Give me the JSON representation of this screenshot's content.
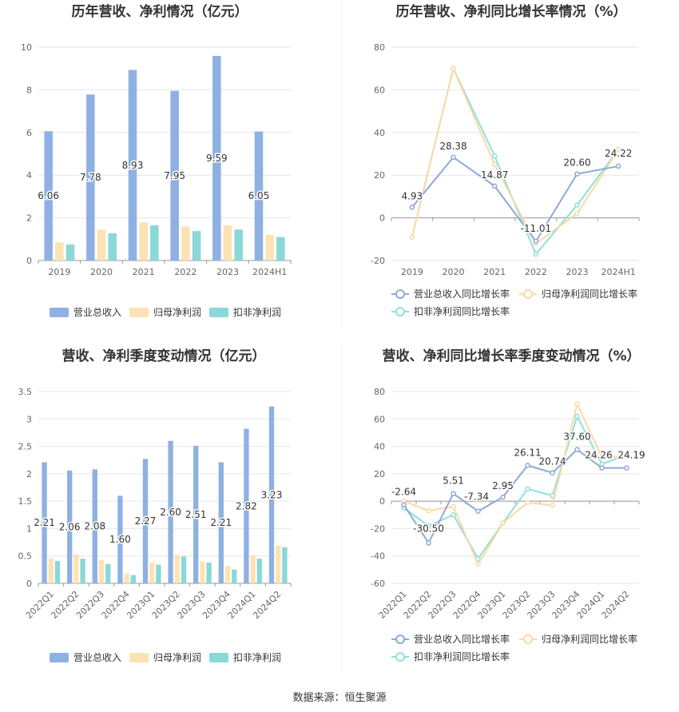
{
  "footer": "数据来源：恒生聚源",
  "legend_labels": {
    "revenue": "营业总收入",
    "net_profit": "归母净利润",
    "deducted_profit": "扣非净利润",
    "revenue_growth": "营业总收入同比增长率",
    "net_growth": "归母净利润同比增长率",
    "deducted_growth": "扣非净利润同比增长率"
  },
  "colors": {
    "revenue": "#8eb1e2",
    "net_profit": "#fde3b3",
    "deducted_profit": "#8ad8d8",
    "revenue_line": "#8ea9d9",
    "net_line": "#fcd8a2",
    "deducted_line": "#8fe0dc"
  },
  "chart_data": [
    {
      "type": "bar",
      "title": "历年营收、净利情况（亿元）",
      "categories": [
        "2019",
        "2020",
        "2021",
        "2022",
        "2023",
        "2024H1"
      ],
      "ylim": [
        0,
        10
      ],
      "yticks": [
        0,
        2,
        4,
        6,
        8,
        10
      ],
      "series": [
        {
          "name": "营业总收入",
          "values": [
            6.06,
            7.78,
            8.93,
            7.95,
            9.59,
            6.05
          ],
          "labeled": true
        },
        {
          "name": "归母净利润",
          "values": [
            0.85,
            1.45,
            1.8,
            1.6,
            1.65,
            1.2
          ]
        },
        {
          "name": "扣非净利润",
          "values": [
            0.75,
            1.28,
            1.65,
            1.38,
            1.45,
            1.1
          ]
        }
      ],
      "legend": "bottom",
      "grid": true
    },
    {
      "type": "line",
      "title": "历年营收、净利同比增长率情况（%）",
      "categories": [
        "2019",
        "2020",
        "2021",
        "2022",
        "2023",
        "2024H1"
      ],
      "ylim": [
        -20,
        80
      ],
      "yticks": [
        -20,
        0,
        20,
        40,
        60,
        80
      ],
      "series": [
        {
          "name": "营业总收入同比增长率",
          "values": [
            4.93,
            28.38,
            14.87,
            -11.01,
            20.6,
            24.22
          ],
          "labeled": true
        },
        {
          "name": "归母净利润同比增长率",
          "values": [
            -9,
            70,
            25,
            -12,
            2,
            32
          ]
        },
        {
          "name": "扣非净利润同比增长率",
          "values": [
            -9,
            70,
            29,
            -17,
            6,
            32
          ]
        }
      ],
      "legend": "bottom",
      "grid": true
    },
    {
      "type": "bar",
      "title": "营收、净利季度变动情况（亿元）",
      "categories": [
        "2022Q1",
        "2022Q2",
        "2022Q3",
        "2022Q4",
        "2023Q1",
        "2023Q2",
        "2023Q3",
        "2023Q4",
        "2024Q1",
        "2024Q2"
      ],
      "ylim": [
        0,
        3.5
      ],
      "yticks": [
        0,
        0.5,
        1,
        1.5,
        2,
        2.5,
        3,
        3.5
      ],
      "series": [
        {
          "name": "营业总收入",
          "values": [
            2.21,
            2.06,
            2.08,
            1.6,
            2.27,
            2.6,
            2.51,
            2.21,
            2.82,
            3.23
          ],
          "labeled": true
        },
        {
          "name": "归母净利润",
          "values": [
            0.46,
            0.53,
            0.42,
            0.18,
            0.38,
            0.52,
            0.4,
            0.32,
            0.51,
            0.69
          ]
        },
        {
          "name": "扣非净利润",
          "values": [
            0.41,
            0.45,
            0.35,
            0.15,
            0.34,
            0.49,
            0.38,
            0.25,
            0.45,
            0.66
          ]
        }
      ],
      "legend": "bottom",
      "grid": true
    },
    {
      "type": "line",
      "title": "营收、净利同比增长率季度变动情况（%）",
      "categories": [
        "2022Q1",
        "2022Q2",
        "2022Q3",
        "2022Q4",
        "2023Q1",
        "2023Q2",
        "2023Q3",
        "2023Q4",
        "2024Q1",
        "2024Q2"
      ],
      "ylim": [
        -60,
        80
      ],
      "yticks": [
        -60,
        -40,
        -20,
        0,
        20,
        40,
        60,
        80
      ],
      "series": [
        {
          "name": "营业总收入同比增长率",
          "values": [
            -2.64,
            -30.5,
            5.51,
            -7.34,
            2.95,
            26.11,
            20.74,
            37.6,
            24.26,
            24.19
          ],
          "labeled": true
        },
        {
          "name": "归母净利润同比增长率",
          "values": [
            0,
            -7,
            -4,
            -46,
            -16,
            -1,
            -3,
            71,
            32,
            33
          ]
        },
        {
          "name": "扣非净利润同比增长率",
          "values": [
            -5,
            -18,
            -10,
            -42,
            -16,
            9,
            4,
            62,
            27,
            34
          ]
        }
      ],
      "legend": "bottom",
      "grid": true
    }
  ]
}
